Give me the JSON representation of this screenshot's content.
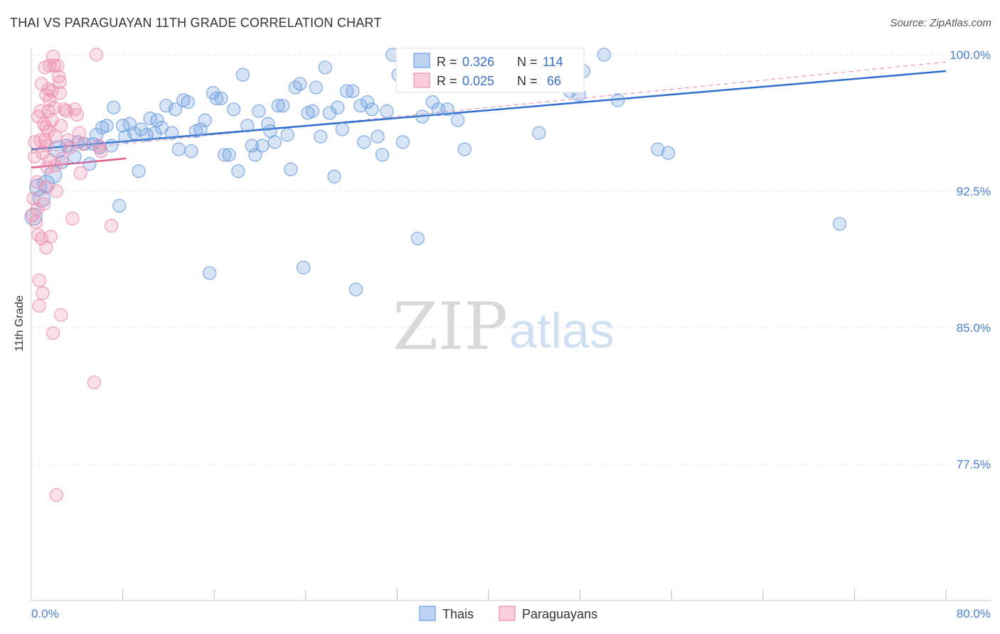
{
  "chart_data": {
    "type": "scatter",
    "title": "THAI VS PARAGUAYAN 11TH GRADE CORRELATION CHART",
    "source": "Source: ZipAtlas.com",
    "ylabel": "11th Grade",
    "xlim": [
      0,
      80
    ],
    "ylim": [
      70.0,
      100.0
    ],
    "x_ticks": {
      "min_label": "0.0%",
      "max_label": "80.0%"
    },
    "y_ticks": [
      {
        "value": 100.0,
        "label": "100.0%"
      },
      {
        "value": 92.5,
        "label": "92.5%"
      },
      {
        "value": 85.0,
        "label": "85.0%"
      },
      {
        "value": 77.5,
        "label": "77.5%"
      }
    ],
    "grid": true,
    "legend_position": "top-center",
    "stats": [
      {
        "r_label": "R =",
        "r": "0.326",
        "n_label": "N =",
        "n": "114",
        "color": "#6b9ee0"
      },
      {
        "r_label": "R =",
        "r": "0.025",
        "n_label": "N =",
        "n": "66",
        "color": "#ee8fb0"
      }
    ],
    "bottom_legend": [
      "Thais",
      "Paraguayans"
    ],
    "watermark": {
      "zip": "ZIP",
      "atlas": "atlas"
    },
    "series": [
      {
        "name": "Thais",
        "color": "#6b9ee0",
        "trend": {
          "x": [
            0,
            80
          ],
          "y": [
            94.8,
            99.1
          ]
        },
        "points": [
          [
            0.2,
            91.1
          ],
          [
            0.6,
            92.7
          ],
          [
            0.9,
            92.1
          ],
          [
            1.3,
            92.9
          ],
          [
            1.9,
            93.4
          ],
          [
            2.3,
            94.8
          ],
          [
            2.7,
            94.1
          ],
          [
            3.1,
            95.0
          ],
          [
            3.8,
            94.4
          ],
          [
            4.1,
            95.2
          ],
          [
            4.7,
            95.1
          ],
          [
            5.1,
            94.0
          ],
          [
            5.4,
            95.1
          ],
          [
            5.7,
            95.6
          ],
          [
            6.0,
            94.9
          ],
          [
            6.2,
            96.0
          ],
          [
            6.6,
            96.1
          ],
          [
            7.0,
            95.0
          ],
          [
            7.2,
            97.1
          ],
          [
            7.7,
            91.7
          ],
          [
            8.0,
            96.1
          ],
          [
            8.2,
            95.5
          ],
          [
            8.6,
            96.2
          ],
          [
            9.0,
            95.7
          ],
          [
            9.4,
            93.6
          ],
          [
            9.6,
            95.9
          ],
          [
            10.1,
            95.6
          ],
          [
            10.4,
            96.5
          ],
          [
            10.8,
            95.7
          ],
          [
            11.0,
            96.4
          ],
          [
            11.4,
            96.0
          ],
          [
            11.8,
            97.2
          ],
          [
            12.3,
            95.7
          ],
          [
            12.6,
            97.0
          ],
          [
            12.9,
            94.8
          ],
          [
            13.3,
            97.5
          ],
          [
            13.7,
            97.4
          ],
          [
            14.0,
            94.7
          ],
          [
            14.4,
            95.8
          ],
          [
            14.8,
            95.9
          ],
          [
            15.2,
            96.4
          ],
          [
            15.6,
            88.0
          ],
          [
            15.9,
            97.9
          ],
          [
            16.2,
            97.6
          ],
          [
            16.6,
            97.6
          ],
          [
            16.9,
            94.5
          ],
          [
            17.3,
            94.5
          ],
          [
            17.7,
            97.0
          ],
          [
            18.1,
            93.6
          ],
          [
            18.5,
            98.9
          ],
          [
            18.9,
            96.1
          ],
          [
            19.3,
            95.0
          ],
          [
            19.6,
            94.5
          ],
          [
            19.9,
            96.9
          ],
          [
            20.2,
            95.0
          ],
          [
            20.7,
            96.2
          ],
          [
            20.9,
            95.8
          ],
          [
            21.3,
            95.2
          ],
          [
            21.6,
            97.2
          ],
          [
            22.0,
            97.2
          ],
          [
            22.4,
            95.6
          ],
          [
            22.7,
            93.7
          ],
          [
            23.1,
            98.2
          ],
          [
            23.5,
            98.4
          ],
          [
            23.8,
            88.3
          ],
          [
            24.2,
            96.8
          ],
          [
            24.6,
            96.9
          ],
          [
            24.9,
            98.2
          ],
          [
            25.3,
            95.5
          ],
          [
            25.7,
            99.3
          ],
          [
            26.1,
            96.8
          ],
          [
            26.5,
            93.3
          ],
          [
            26.8,
            97.1
          ],
          [
            27.2,
            95.9
          ],
          [
            27.6,
            98.0
          ],
          [
            28.1,
            98.0
          ],
          [
            28.4,
            87.1
          ],
          [
            28.8,
            97.2
          ],
          [
            29.1,
            95.2
          ],
          [
            29.4,
            97.4
          ],
          [
            29.8,
            97.0
          ],
          [
            30.3,
            95.5
          ],
          [
            30.7,
            94.5
          ],
          [
            31.1,
            96.9
          ],
          [
            31.6,
            100.0
          ],
          [
            32.1,
            98.9
          ],
          [
            32.5,
            95.2
          ],
          [
            33.0,
            99.6
          ],
          [
            33.4,
            98.4
          ],
          [
            33.8,
            89.9
          ],
          [
            34.2,
            96.6
          ],
          [
            35.1,
            97.4
          ],
          [
            35.6,
            97.0
          ],
          [
            36.0,
            100.0
          ],
          [
            36.4,
            97.0
          ],
          [
            37.3,
            96.4
          ],
          [
            37.9,
            94.8
          ],
          [
            39.1,
            100.0
          ],
          [
            40.5,
            99.3
          ],
          [
            41.7,
            100.0
          ],
          [
            42.1,
            98.8
          ],
          [
            44.4,
            95.7
          ],
          [
            44.8,
            100.0
          ],
          [
            47.1,
            98.0
          ],
          [
            47.7,
            98.6
          ],
          [
            47.9,
            97.8
          ],
          [
            48.3,
            99.1
          ],
          [
            50.1,
            100.0
          ],
          [
            51.3,
            97.5
          ],
          [
            54.8,
            94.8
          ],
          [
            55.7,
            94.6
          ],
          [
            70.7,
            90.7
          ]
        ]
      },
      {
        "name": "Paraguayans",
        "color": "#ee8fb0",
        "trend": {
          "x": [
            0,
            8.3
          ],
          "y": [
            93.8,
            94.3
          ]
        },
        "trend_extended": {
          "x": [
            0,
            80
          ],
          "y": [
            94.6,
            99.6
          ]
        },
        "points": [
          [
            0.1,
            91.2
          ],
          [
            0.2,
            92.1
          ],
          [
            0.3,
            94.4
          ],
          [
            0.3,
            95.2
          ],
          [
            0.4,
            90.8
          ],
          [
            0.5,
            93.0
          ],
          [
            0.5,
            91.5
          ],
          [
            0.6,
            96.6
          ],
          [
            0.6,
            90.1
          ],
          [
            0.7,
            87.6
          ],
          [
            0.7,
            86.2
          ],
          [
            0.8,
            96.9
          ],
          [
            0.8,
            95.3
          ],
          [
            0.9,
            98.4
          ],
          [
            0.9,
            89.9
          ],
          [
            1.0,
            86.9
          ],
          [
            1.0,
            94.6
          ],
          [
            1.1,
            96.2
          ],
          [
            1.1,
            91.8
          ],
          [
            1.2,
            99.3
          ],
          [
            1.2,
            95.3
          ],
          [
            1.3,
            97.8
          ],
          [
            1.3,
            92.7
          ],
          [
            1.3,
            89.4
          ],
          [
            1.4,
            95.0
          ],
          [
            1.4,
            93.8
          ],
          [
            1.5,
            98.1
          ],
          [
            1.5,
            96.9
          ],
          [
            1.5,
            95.8
          ],
          [
            1.6,
            99.4
          ],
          [
            1.6,
            97.5
          ],
          [
            1.6,
            94.2
          ],
          [
            1.7,
            90.0
          ],
          [
            1.8,
            98.0
          ],
          [
            1.8,
            96.4
          ],
          [
            1.9,
            84.7
          ],
          [
            1.9,
            99.9
          ],
          [
            2.0,
            99.4
          ],
          [
            2.0,
            97.1
          ],
          [
            2.1,
            95.5
          ],
          [
            2.1,
            93.9
          ],
          [
            2.2,
            92.5
          ],
          [
            2.3,
            99.4
          ],
          [
            2.4,
            98.8
          ],
          [
            2.5,
            98.5
          ],
          [
            2.5,
            97.9
          ],
          [
            2.6,
            96.1
          ],
          [
            2.6,
            85.7
          ],
          [
            2.7,
            94.3
          ],
          [
            2.9,
            97.0
          ],
          [
            3.1,
            96.9
          ],
          [
            3.2,
            95.3
          ],
          [
            3.4,
            94.9
          ],
          [
            3.6,
            91.0
          ],
          [
            3.8,
            97.0
          ],
          [
            4.0,
            96.7
          ],
          [
            4.2,
            95.7
          ],
          [
            4.3,
            93.5
          ],
          [
            4.5,
            95.1
          ],
          [
            5.5,
            82.0
          ],
          [
            5.7,
            100.0
          ],
          [
            5.9,
            95.0
          ],
          [
            6.1,
            94.7
          ],
          [
            7.0,
            90.6
          ],
          [
            2.2,
            75.8
          ],
          [
            1.3,
            96.0
          ]
        ]
      }
    ]
  }
}
